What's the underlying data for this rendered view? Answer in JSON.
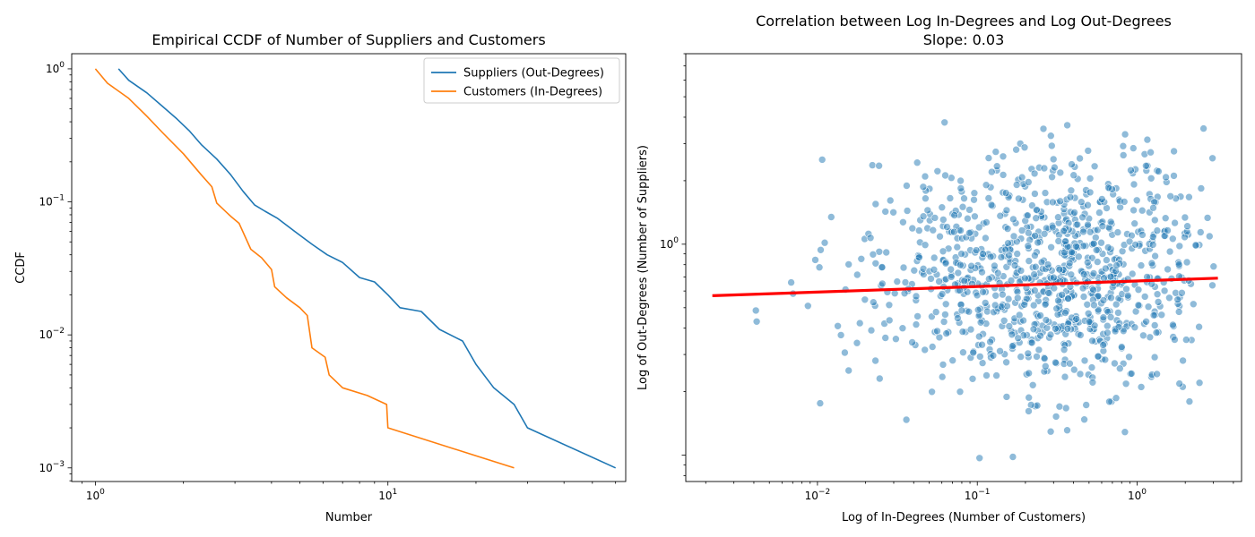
{
  "figure": {
    "background": "#ffffff"
  },
  "chart_data": [
    {
      "type": "line",
      "title": "Empirical CCDF of Number of Suppliers and Customers",
      "xlabel": "Number",
      "ylabel": "CCDF",
      "xscale": "log",
      "yscale": "log",
      "xlim": [
        0.83,
        65
      ],
      "ylim": [
        0.00079,
        1.3
      ],
      "x_ticks": [
        {
          "value": 1,
          "base": "10",
          "exp": "0"
        },
        {
          "value": 10,
          "base": "10",
          "exp": "1"
        }
      ],
      "y_ticks": [
        {
          "value": 1,
          "base": "10",
          "exp": "0"
        },
        {
          "value": 0.1,
          "base": "10",
          "exp": "−1"
        },
        {
          "value": 0.01,
          "base": "10",
          "exp": "−2"
        },
        {
          "value": 0.001,
          "base": "10",
          "exp": "−3"
        }
      ],
      "grid": false,
      "legend": "top-right",
      "series": [
        {
          "name": "Suppliers (Out-Degrees)",
          "color": "#1f77b4",
          "points": [
            [
              1.2,
              1.0
            ],
            [
              1.3,
              0.82
            ],
            [
              1.5,
              0.66
            ],
            [
              1.7,
              0.52
            ],
            [
              1.9,
              0.42
            ],
            [
              2.1,
              0.34
            ],
            [
              2.3,
              0.27
            ],
            [
              2.6,
              0.21
            ],
            [
              2.9,
              0.16
            ],
            [
              3.2,
              0.12
            ],
            [
              3.5,
              0.095
            ],
            [
              3.8,
              0.085
            ],
            [
              4.2,
              0.075
            ],
            [
              4.8,
              0.06
            ],
            [
              5.5,
              0.048
            ],
            [
              6.2,
              0.04
            ],
            [
              7.0,
              0.035
            ],
            [
              8.0,
              0.027
            ],
            [
              9.0,
              0.025
            ],
            [
              10.0,
              0.02
            ],
            [
              11.0,
              0.016
            ],
            [
              13.0,
              0.015
            ],
            [
              15.0,
              0.011
            ],
            [
              18.0,
              0.009
            ],
            [
              20.0,
              0.006
            ],
            [
              23.0,
              0.004
            ],
            [
              27.0,
              0.003
            ],
            [
              30.0,
              0.002
            ],
            [
              60.0,
              0.001
            ]
          ]
        },
        {
          "name": "Customers (In-Degrees)",
          "color": "#ff7f0e",
          "points": [
            [
              1.0,
              1.0
            ],
            [
              1.1,
              0.78
            ],
            [
              1.3,
              0.6
            ],
            [
              1.5,
              0.44
            ],
            [
              1.7,
              0.33
            ],
            [
              2.0,
              0.23
            ],
            [
              2.3,
              0.16
            ],
            [
              2.5,
              0.13
            ],
            [
              2.6,
              0.098
            ],
            [
              2.9,
              0.078
            ],
            [
              3.1,
              0.069
            ],
            [
              3.4,
              0.044
            ],
            [
              3.7,
              0.038
            ],
            [
              4.0,
              0.031
            ],
            [
              4.1,
              0.023
            ],
            [
              4.5,
              0.019
            ],
            [
              5.0,
              0.016
            ],
            [
              5.3,
              0.014
            ],
            [
              5.5,
              0.008
            ],
            [
              6.1,
              0.0068
            ],
            [
              6.3,
              0.005
            ],
            [
              7.0,
              0.004
            ],
            [
              8.5,
              0.0035
            ],
            [
              9.9,
              0.003
            ],
            [
              10.0,
              0.002
            ],
            [
              27.0,
              0.001
            ]
          ]
        }
      ]
    },
    {
      "type": "scatter",
      "title": "Correlation between Log In-Degrees and Log Out-Degrees",
      "subtitle": "Slope: 0.03",
      "xlabel": "Log of In-Degrees (Number of Customers)",
      "ylabel": "Log of Out-Degrees (Number of Suppliers)",
      "xscale": "log",
      "yscale": "log",
      "xlim": [
        0.0015,
        4.5
      ],
      "ylim": [
        0.075,
        8.0
      ],
      "x_ticks": [
        {
          "value": 0.01,
          "base": "10",
          "exp": "−2"
        },
        {
          "value": 0.1,
          "base": "10",
          "exp": "−1"
        },
        {
          "value": 1,
          "base": "10",
          "exp": "0"
        }
      ],
      "y_ticks": [
        {
          "value": 1,
          "base": "10",
          "exp": "0"
        }
      ],
      "grid": false,
      "points_color": "#1f77b4",
      "points_opacity": 0.5,
      "point_count": 1000,
      "x_range_of_points": [
        0.0018,
        3.2
      ],
      "y_range_of_points": [
        0.09,
        6.0
      ],
      "fit_line": {
        "color": "#ff0000",
        "slope": 0.03,
        "x": [
          0.0022,
          3.2
        ],
        "y": [
          0.57,
          0.69
        ]
      }
    }
  ]
}
